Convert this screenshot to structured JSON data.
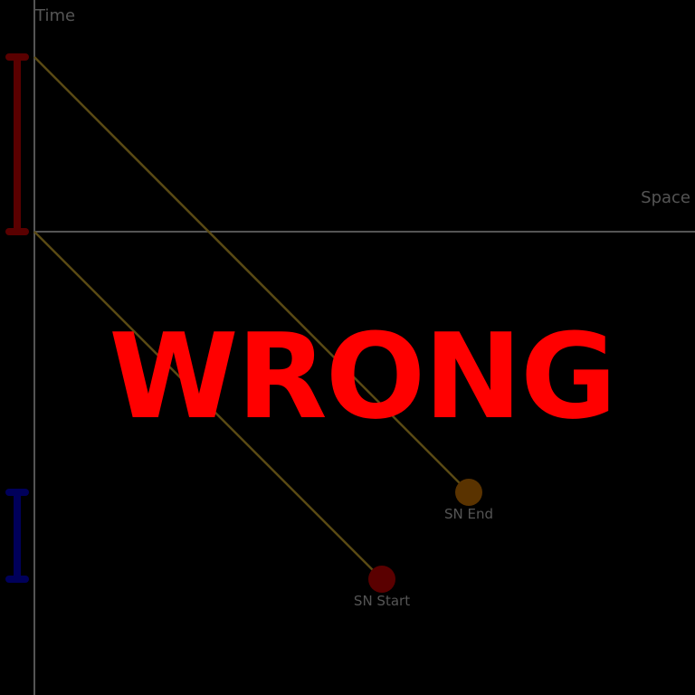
{
  "axes": {
    "time_label": "Time",
    "space_label": "Space",
    "color": "#555555"
  },
  "events": [
    {
      "label": "SN Start",
      "color": "#5a0000"
    },
    {
      "label": "SN End",
      "color": "#5a3300"
    }
  ],
  "light_ray_color": "#5a4a14",
  "bars": [
    {
      "name": "red-interval-bar",
      "color": "#5a0000"
    },
    {
      "name": "blue-interval-bar",
      "color": "#00005a"
    }
  ],
  "verdict": {
    "text": "WRONG",
    "color": "#ff0000"
  }
}
